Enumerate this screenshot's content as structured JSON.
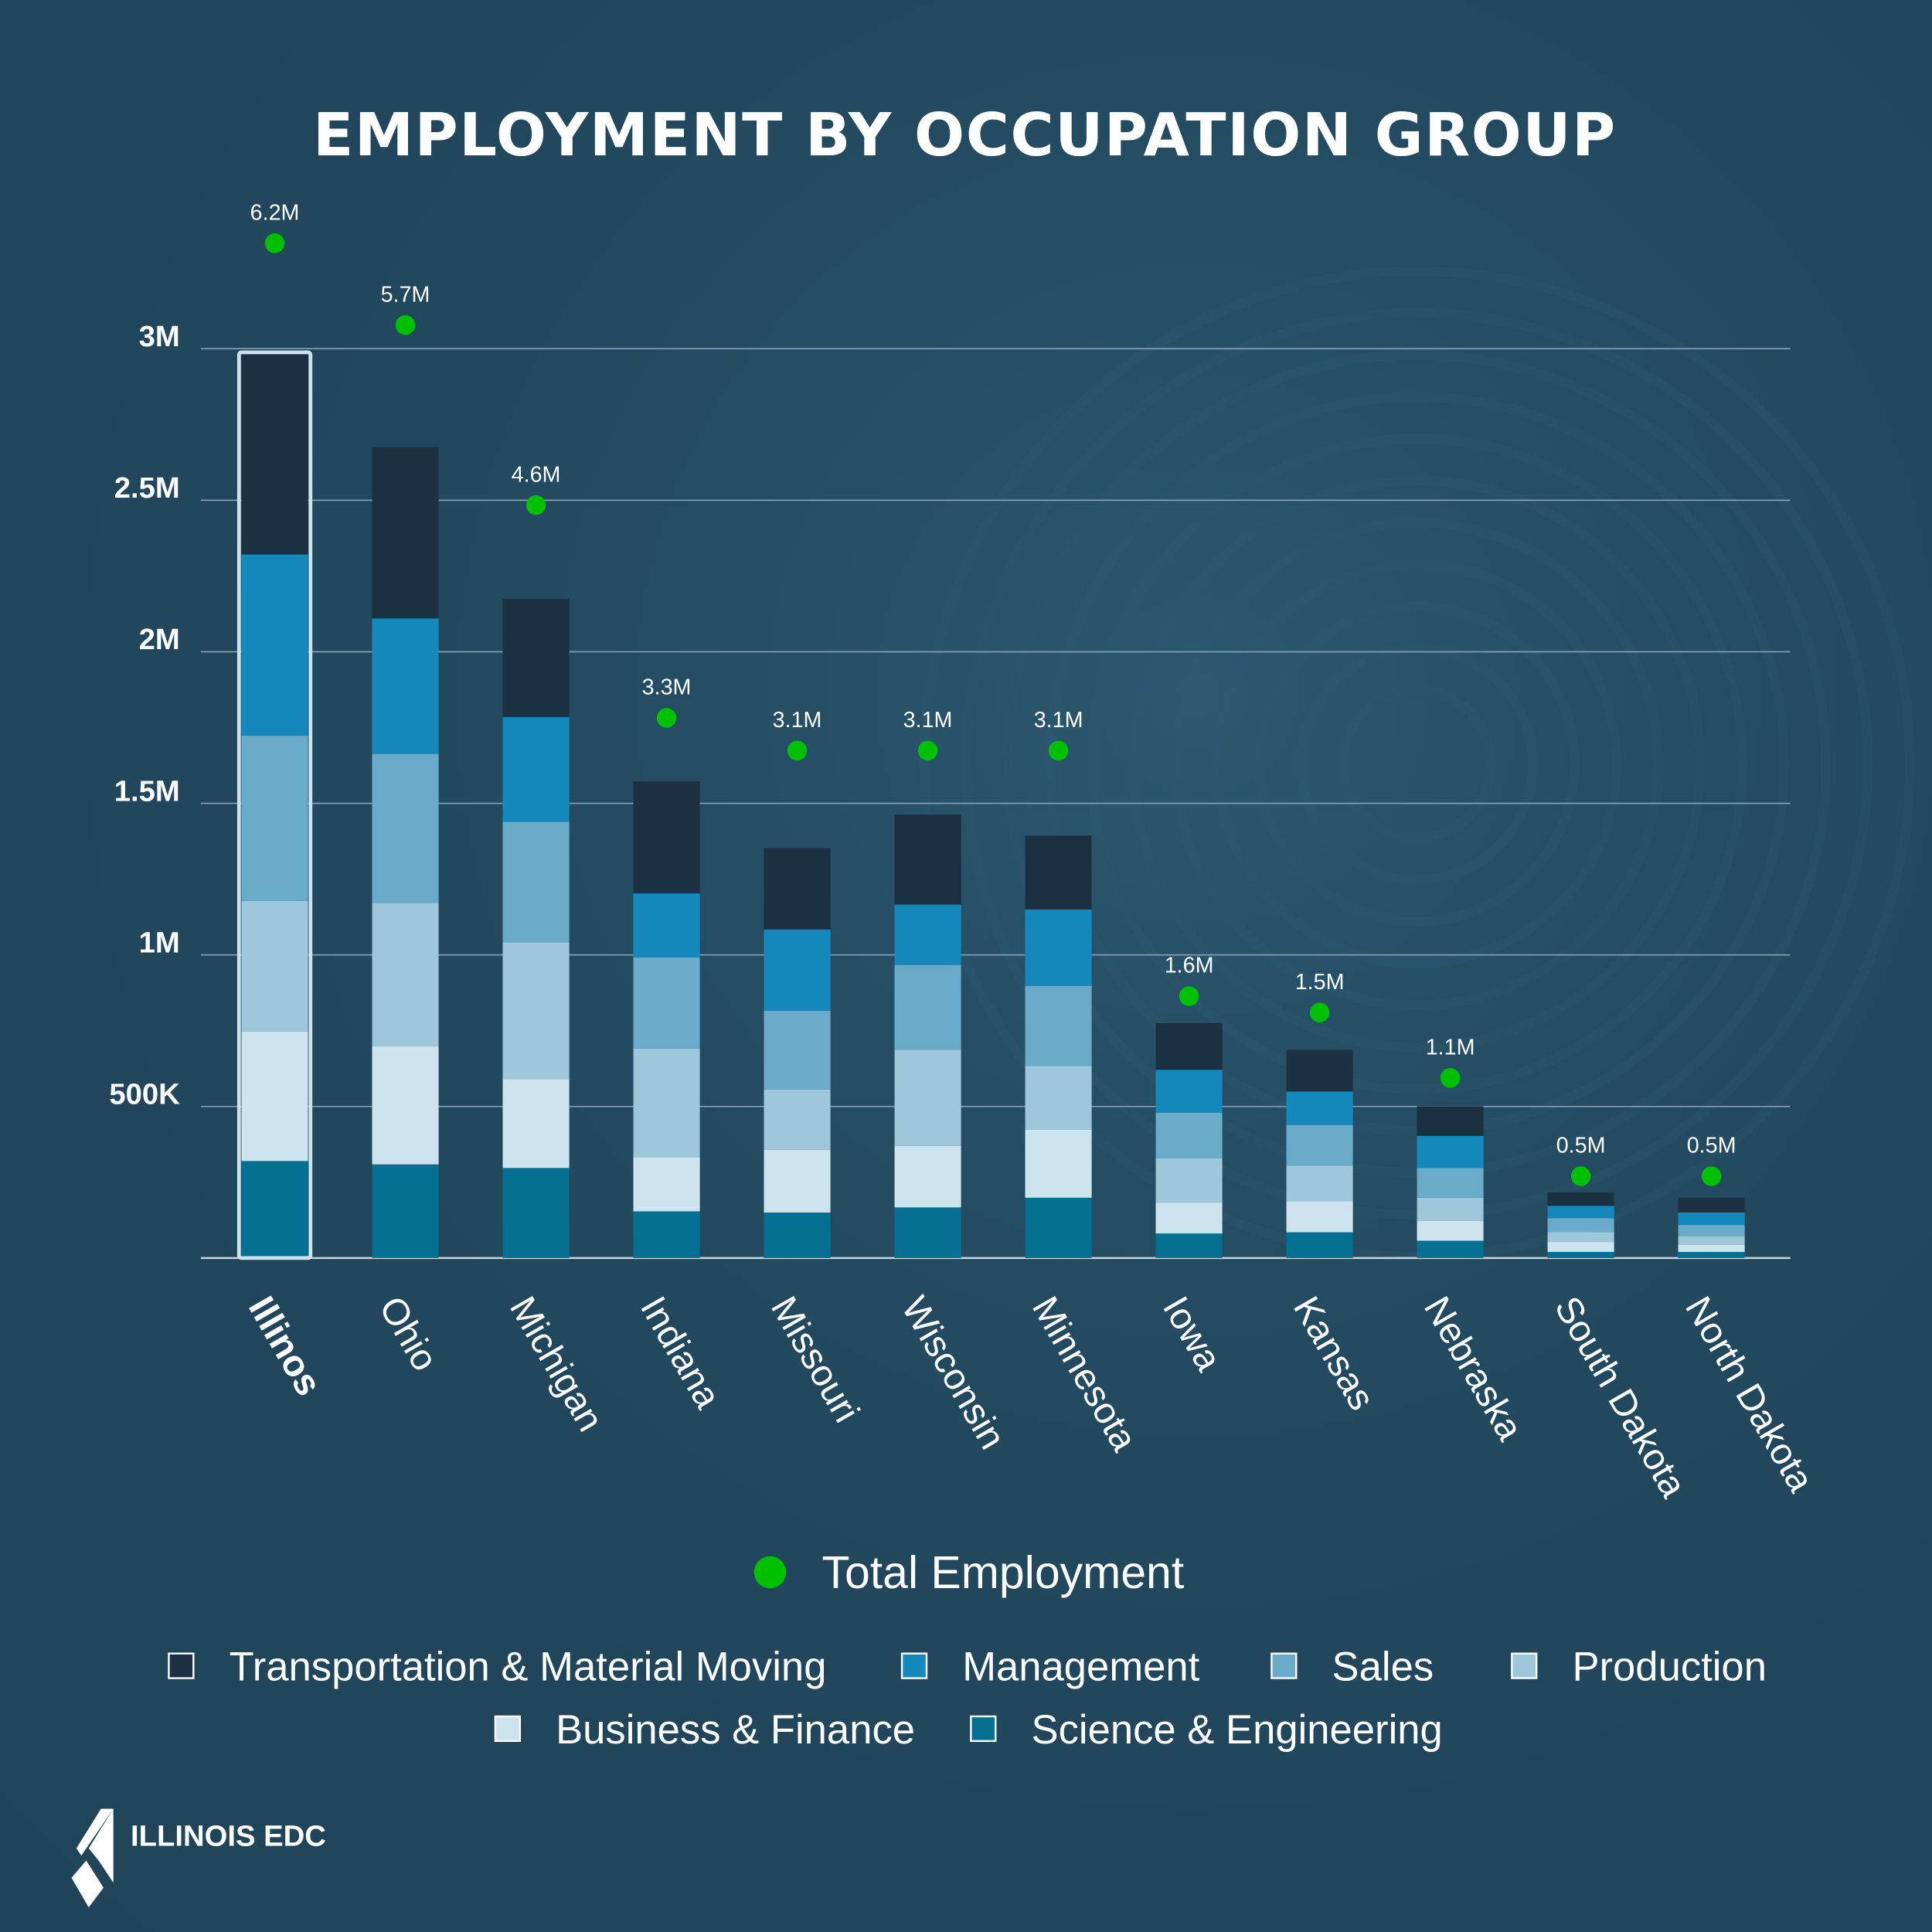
{
  "title": "EMPLOYMENT BY OCCUPATION GROUP",
  "logo_text": "ILLINOIS EDC",
  "chart_data": {
    "type": "bar",
    "stacked": true,
    "title": "EMPLOYMENT BY OCCUPATION GROUP",
    "categories": [
      "Illinos",
      "Ohio",
      "Michigan",
      "Indiana",
      "Missouri",
      "Wisconsin",
      "Minnesota",
      "Iowa",
      "Kansas",
      "Nebraska",
      "South Dakota",
      "North Dakota"
    ],
    "highlighted_category": "Illinos",
    "ylim": [
      0,
      3000000
    ],
    "yticks": [
      {
        "v": 500000,
        "label": "500K"
      },
      {
        "v": 1000000,
        "label": "1M"
      },
      {
        "v": 1500000,
        "label": "1.5M"
      },
      {
        "v": 2000000,
        "label": "2M"
      },
      {
        "v": 2500000,
        "label": "2.5M"
      },
      {
        "v": 3000000,
        "label": "3M"
      }
    ],
    "grid": true,
    "series": [
      {
        "name": "Science & Engineering",
        "color": "#067093",
        "values": [
          320000,
          309000,
          297000,
          154000,
          150000,
          167000,
          199000,
          81000,
          85000,
          57000,
          20000,
          20000
        ]
      },
      {
        "name": "Business & Finance",
        "color": "#cde3ed",
        "values": [
          427000,
          390000,
          293000,
          179000,
          207000,
          203000,
          224000,
          102000,
          102000,
          65000,
          33000,
          24000
        ]
      },
      {
        "name": "Production",
        "color": "#9fc7da",
        "values": [
          431000,
          472000,
          451000,
          358000,
          199000,
          317000,
          211000,
          146000,
          118000,
          77000,
          33000,
          28000
        ]
      },
      {
        "name": "Sales",
        "color": "#6aabca",
        "values": [
          545000,
          492000,
          398000,
          301000,
          260000,
          280000,
          264000,
          150000,
          134000,
          98000,
          45000,
          37000
        ]
      },
      {
        "name": "Management",
        "color": "#1589bc",
        "values": [
          598000,
          447000,
          346000,
          211000,
          268000,
          199000,
          252000,
          142000,
          110000,
          106000,
          41000,
          41000
        ]
      },
      {
        "name": "Transportation & Material Moving",
        "color": "#1b3142",
        "values": [
          659000,
          565000,
          390000,
          370000,
          268000,
          297000,
          244000,
          154000,
          138000,
          98000,
          45000,
          49000
        ]
      }
    ],
    "total_series": {
      "name": "Total Employment",
      "color": "#00c000",
      "values": [
        6.2,
        5.7,
        4.6,
        3.3,
        3.1,
        3.1,
        3.1,
        1.6,
        1.5,
        1.1,
        0.5,
        0.5
      ],
      "labels": [
        "6.2M",
        "5.7M",
        "4.6M",
        "3.3M",
        "3.1M",
        "3.1M",
        "3.1M",
        "1.6M",
        "1.5M",
        "1.1M",
        "0.5M",
        "0.5M"
      ]
    },
    "legend": {
      "total_label": "Total Employment",
      "items": [
        "Transportation & Material Moving",
        "Management",
        "Sales",
        "Production",
        "Business & Finance",
        "Science & Engineering"
      ],
      "placement": "bottom"
    }
  }
}
